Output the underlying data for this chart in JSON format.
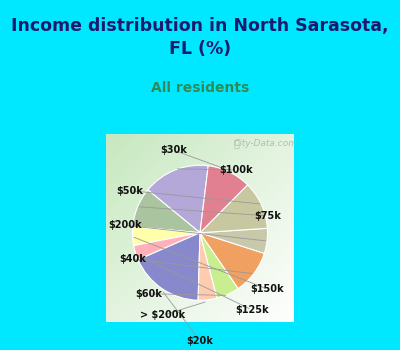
{
  "title": "Income distribution in North Sarasota,\nFL (%)",
  "subtitle": "All residents",
  "labels": [
    "$100k",
    "$75k",
    "$150k",
    "$125k",
    "$20k",
    "> $200k",
    "$60k",
    "$40k",
    "$200k",
    "$50k",
    "$30k"
  ],
  "sizes": [
    16.0,
    9.5,
    4.5,
    3.5,
    18.0,
    4.5,
    5.5,
    10.5,
    6.0,
    11.5,
    10.5
  ],
  "colors": [
    "#b3a8d8",
    "#aac4a0",
    "#ffffaa",
    "#ffb0b8",
    "#8888cc",
    "#ffccb0",
    "#c8ee90",
    "#f0a060",
    "#c8c8aa",
    "#c8c8a0",
    "#e08090"
  ],
  "bg_top": "#00e8ff",
  "title_color": "#1a1a6e",
  "subtitle_color": "#2e8b57",
  "watermark": "City-Data.com",
  "startangle": 83
}
